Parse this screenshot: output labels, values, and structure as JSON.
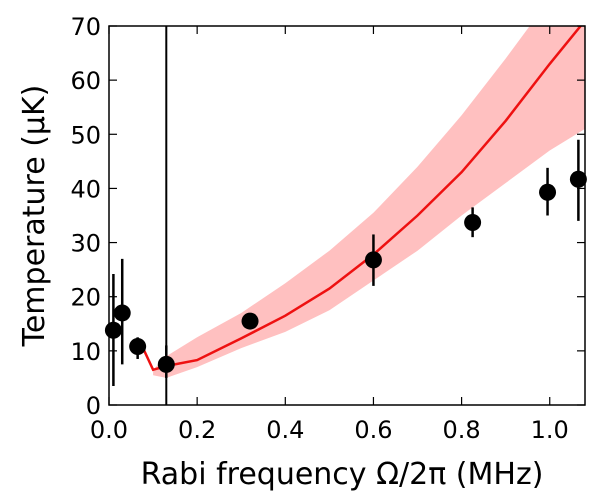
{
  "chart_data": {
    "type": "scatter",
    "title": "",
    "xlabel": "Rabi frequency Ω/2π (MHz)",
    "ylabel": "Temperature (μK)",
    "xlim": [
      0.0,
      1.08
    ],
    "ylim": [
      0,
      70
    ],
    "x_ticks": [
      0.0,
      0.2,
      0.4,
      0.6,
      0.8,
      1.0
    ],
    "x_tick_labels": [
      "0.0",
      "0.2",
      "0.4",
      "0.6",
      "0.8",
      "1.0"
    ],
    "y_ticks": [
      0,
      10,
      20,
      30,
      40,
      50,
      60,
      70
    ],
    "y_tick_labels": [
      "0",
      "10",
      "20",
      "30",
      "40",
      "50",
      "60",
      "70"
    ],
    "grid": false,
    "legend": "none",
    "vertical_line": {
      "x": 0.13,
      "color": "#000000"
    },
    "points": [
      {
        "x": 0.01,
        "y": 13.8,
        "err_low": 3.5,
        "err_high": 24.2
      },
      {
        "x": 0.03,
        "y": 17.0,
        "err_low": 7.5,
        "err_high": 27.0
      },
      {
        "x": 0.065,
        "y": 10.8,
        "err_low": 8.5,
        "err_high": 12.5
      },
      {
        "x": 0.13,
        "y": 7.5,
        "err_low": 5.0,
        "err_high": 11.0
      },
      {
        "x": 0.32,
        "y": 15.5,
        "err_low": 14.5,
        "err_high": 16.5
      },
      {
        "x": 0.6,
        "y": 26.8,
        "err_low": 22.0,
        "err_high": 31.5
      },
      {
        "x": 0.825,
        "y": 33.7,
        "err_low": 31.0,
        "err_high": 36.5
      },
      {
        "x": 0.995,
        "y": 39.3,
        "err_low": 35.0,
        "err_high": 43.8
      },
      {
        "x": 1.065,
        "y": 41.7,
        "err_low": 34.0,
        "err_high": 49.0
      }
    ],
    "model_line": {
      "color": "#ee1111",
      "x": [
        0.05,
        0.08,
        0.1,
        0.13,
        0.2,
        0.3,
        0.4,
        0.5,
        0.6,
        0.7,
        0.8,
        0.9,
        1.0,
        1.08
      ],
      "y": [
        11.0,
        10.0,
        6.5,
        7.2,
        8.3,
        12.3,
        16.5,
        21.5,
        27.8,
        35.0,
        43.0,
        52.5,
        63.0,
        71.0
      ]
    },
    "model_band": {
      "color": "#ffc0c0",
      "x": [
        0.1,
        0.13,
        0.2,
        0.3,
        0.4,
        0.5,
        0.6,
        0.7,
        0.8,
        0.9,
        1.0,
        1.08
      ],
      "upper": [
        6.5,
        9.0,
        12.5,
        17.0,
        22.5,
        28.5,
        35.5,
        44.0,
        53.5,
        64.0,
        75.0,
        83.0
      ],
      "lower": [
        5.5,
        5.0,
        7.0,
        10.5,
        13.5,
        17.5,
        23.0,
        28.5,
        35.0,
        41.0,
        47.0,
        51.0
      ]
    }
  }
}
